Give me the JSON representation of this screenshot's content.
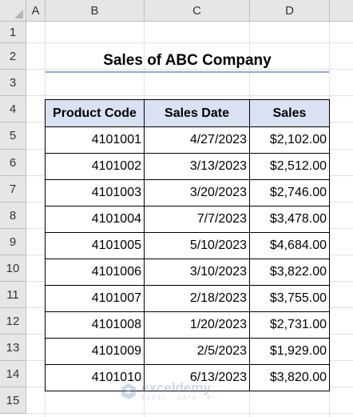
{
  "columns": [
    "A",
    "B",
    "C",
    "D"
  ],
  "rows": [
    "1",
    "2",
    "3",
    "4",
    "5",
    "6",
    "7",
    "8",
    "9",
    "10",
    "11",
    "12",
    "13",
    "14",
    "15"
  ],
  "title": "Sales of ABC Company",
  "table": {
    "headers": [
      "Product Code",
      "Sales Date",
      "Sales"
    ],
    "rows": [
      [
        "4101001",
        "4/27/2023",
        "$2,102.00"
      ],
      [
        "4101002",
        "3/13/2023",
        "$2,512.00"
      ],
      [
        "4101003",
        "3/20/2023",
        "$2,746.00"
      ],
      [
        "4101004",
        "7/7/2023",
        "$3,478.00"
      ],
      [
        "4101005",
        "5/10/2023",
        "$4,684.00"
      ],
      [
        "4101006",
        "3/10/2023",
        "$3,822.00"
      ],
      [
        "4101007",
        "2/18/2023",
        "$3,755.00"
      ],
      [
        "4101008",
        "1/20/2023",
        "$2,731.00"
      ],
      [
        "4101009",
        "2/5/2023",
        "$1,929.00"
      ],
      [
        "4101010",
        "6/13/2023",
        "$3,820.00"
      ]
    ]
  },
  "watermark": {
    "name": "exceldemy",
    "tagline": "EXCEL · DATA · BI",
    "icon": "exceldemy-logo-icon"
  },
  "colors": {
    "header_fill": "#d9e1f2",
    "title_underline": "#8ea9db",
    "grid": "#e1e1e1"
  }
}
